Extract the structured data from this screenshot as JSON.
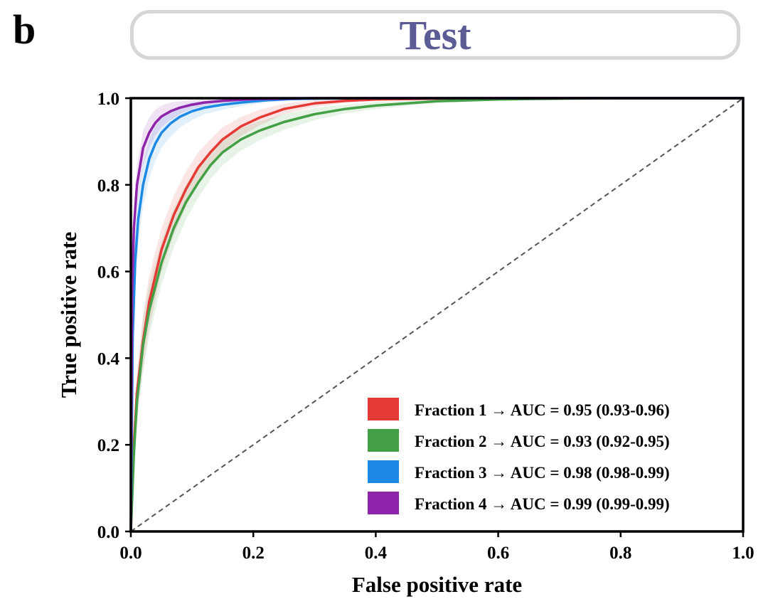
{
  "panel_letter": "b",
  "header": {
    "title": "Test"
  },
  "chart_data": {
    "type": "line",
    "title": "Test",
    "xlabel": "False positive rate",
    "ylabel": "True positive rate",
    "xlim": [
      0,
      1
    ],
    "ylim": [
      0,
      1
    ],
    "xticks": [
      "0.0",
      "0.2",
      "0.4",
      "0.6",
      "0.8",
      "1.0"
    ],
    "yticks": [
      "0.0",
      "0.2",
      "0.4",
      "0.6",
      "0.8",
      "1.0"
    ],
    "grid": false,
    "legend_position": "bottom-right",
    "diagonal_reference": true,
    "series": [
      {
        "name": "Fraction 1",
        "label": "Fraction 1  →  AUC = 0.95 (0.93-0.96)",
        "color": "#e53935",
        "x": [
          0,
          0.005,
          0.01,
          0.02,
          0.03,
          0.05,
          0.07,
          0.09,
          0.11,
          0.13,
          0.15,
          0.18,
          0.21,
          0.25,
          0.3,
          0.35,
          0.4,
          0.5,
          0.6,
          0.7,
          0.8,
          1.0
        ],
        "y": [
          0,
          0.2,
          0.32,
          0.44,
          0.53,
          0.65,
          0.73,
          0.79,
          0.84,
          0.875,
          0.905,
          0.935,
          0.955,
          0.975,
          0.988,
          0.994,
          0.997,
          0.999,
          1.0,
          1.0,
          1.0,
          1.0
        ],
        "band_width": [
          0,
          0.04,
          0.05,
          0.06,
          0.06,
          0.05,
          0.045,
          0.04,
          0.035,
          0.03,
          0.028,
          0.022,
          0.018,
          0.012,
          0.008,
          0.005,
          0.003,
          0.001,
          0,
          0,
          0,
          0
        ]
      },
      {
        "name": "Fraction 2",
        "label": "Fraction 2  →  AUC = 0.93 (0.92-0.95)",
        "color": "#43a047",
        "x": [
          0,
          0.005,
          0.01,
          0.02,
          0.03,
          0.05,
          0.07,
          0.09,
          0.11,
          0.13,
          0.15,
          0.18,
          0.21,
          0.25,
          0.3,
          0.35,
          0.4,
          0.5,
          0.6,
          0.7,
          0.8,
          1.0
        ],
        "y": [
          0,
          0.18,
          0.3,
          0.43,
          0.51,
          0.62,
          0.7,
          0.76,
          0.805,
          0.845,
          0.875,
          0.905,
          0.925,
          0.945,
          0.963,
          0.975,
          0.983,
          0.993,
          0.997,
          0.999,
          1.0,
          1.0
        ],
        "band_width": [
          0,
          0.04,
          0.05,
          0.06,
          0.06,
          0.05,
          0.045,
          0.04,
          0.035,
          0.032,
          0.03,
          0.026,
          0.022,
          0.018,
          0.014,
          0.01,
          0.008,
          0.004,
          0.002,
          0.001,
          0,
          0
        ]
      },
      {
        "name": "Fraction 3",
        "label": "Fraction 3  →  AUC = 0.98 (0.98-0.99)",
        "color": "#1e88e5",
        "x": [
          0,
          0.003,
          0.007,
          0.012,
          0.02,
          0.03,
          0.04,
          0.05,
          0.065,
          0.08,
          0.1,
          0.12,
          0.15,
          0.18,
          0.22,
          0.26,
          0.3,
          0.4,
          1.0
        ],
        "y": [
          0,
          0.45,
          0.62,
          0.72,
          0.8,
          0.86,
          0.895,
          0.92,
          0.942,
          0.957,
          0.97,
          0.978,
          0.985,
          0.99,
          0.995,
          0.998,
          0.999,
          1.0,
          1.0
        ],
        "band_width": [
          0,
          0.08,
          0.07,
          0.06,
          0.05,
          0.045,
          0.04,
          0.035,
          0.03,
          0.025,
          0.02,
          0.015,
          0.012,
          0.008,
          0.005,
          0.003,
          0.001,
          0,
          0
        ]
      },
      {
        "name": "Fraction 4",
        "label": "Fraction 4  →  AUC = 0.99 (0.99-0.99)",
        "color": "#8e24aa",
        "x": [
          0,
          0.002,
          0.005,
          0.01,
          0.02,
          0.03,
          0.04,
          0.05,
          0.065,
          0.08,
          0.1,
          0.12,
          0.15,
          0.2,
          0.25,
          0.3,
          1.0
        ],
        "y": [
          0,
          0.55,
          0.7,
          0.8,
          0.885,
          0.92,
          0.943,
          0.958,
          0.97,
          0.978,
          0.985,
          0.99,
          0.994,
          0.998,
          0.999,
          1.0,
          1.0
        ],
        "band_width": [
          0,
          0.06,
          0.05,
          0.045,
          0.04,
          0.035,
          0.03,
          0.025,
          0.02,
          0.015,
          0.01,
          0.007,
          0.004,
          0.002,
          0.001,
          0,
          0
        ]
      }
    ]
  }
}
